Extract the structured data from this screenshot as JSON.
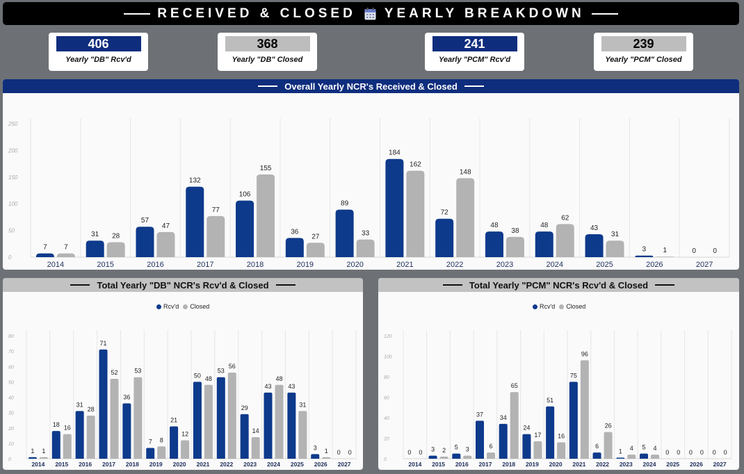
{
  "header": {
    "title": "RECEIVED & CLOSED",
    "title_tail": "YEARLY BREAKDOWN"
  },
  "kpis": [
    {
      "value": "406",
      "label": "Yearly \"DB\" Rcv'd"
    },
    {
      "value": "368",
      "label": "Yearly \"DB\" Closed"
    },
    {
      "value": "241",
      "label": "Yearly \"PCM\" Rcv'd"
    },
    {
      "value": "239",
      "label": "Yearly \"PCM\" Closed"
    }
  ],
  "panels": {
    "overall_title": "Overall Yearly NCR's Received & Closed",
    "db_title": "Total Yearly \"DB\" NCR's Rcv'd & Closed",
    "pcm_title": "Total Yearly \"PCM\" NCR's Rcv'd & Closed"
  },
  "legend": {
    "rcvd": "Rcv'd",
    "closed": "Closed"
  },
  "colors": {
    "rcvd": "#0e3a8c",
    "closed": "#b3b3b3",
    "navy": "#0e2d7d"
  },
  "chart_data": [
    {
      "id": "overall",
      "type": "bar",
      "title": "Overall Yearly NCR's Received & Closed",
      "categories": [
        "2014",
        "2015",
        "2016",
        "2017",
        "2018",
        "2019",
        "2020",
        "2021",
        "2022",
        "2023",
        "2024",
        "2025",
        "2026",
        "2027"
      ],
      "series": [
        {
          "name": "Rcv'd",
          "values": [
            7,
            31,
            57,
            132,
            106,
            36,
            89,
            184,
            72,
            48,
            48,
            43,
            3,
            0
          ]
        },
        {
          "name": "Closed",
          "values": [
            7,
            28,
            47,
            77,
            155,
            27,
            33,
            162,
            148,
            38,
            62,
            31,
            1,
            0
          ]
        }
      ],
      "ylim": [
        0,
        250
      ],
      "yticks": [
        0,
        50,
        100,
        150,
        200,
        250
      ]
    },
    {
      "id": "db",
      "type": "bar",
      "title": "Total Yearly \"DB\" NCR's Rcv'd & Closed",
      "categories": [
        "2014",
        "2015",
        "2016",
        "2017",
        "2018",
        "2019",
        "2020",
        "2021",
        "2022",
        "2023",
        "2024",
        "2025",
        "2026",
        "2027"
      ],
      "series": [
        {
          "name": "Rcv'd",
          "values": [
            1,
            18,
            31,
            71,
            36,
            7,
            21,
            50,
            53,
            29,
            43,
            43,
            3,
            0
          ]
        },
        {
          "name": "Closed",
          "values": [
            1,
            16,
            28,
            52,
            53,
            8,
            12,
            48,
            56,
            14,
            48,
            31,
            1,
            0
          ]
        }
      ],
      "ylim": [
        0,
        80
      ],
      "yticks": [
        0,
        10,
        20,
        30,
        40,
        50,
        60,
        70,
        80
      ]
    },
    {
      "id": "pcm",
      "type": "bar",
      "title": "Total Yearly \"PCM\" NCR's Rcv'd & Closed",
      "categories": [
        "2014",
        "2015",
        "2016",
        "2017",
        "2018",
        "2019",
        "2020",
        "2021",
        "2022",
        "2023",
        "2024",
        "2025",
        "2026",
        "2027"
      ],
      "series": [
        {
          "name": "Rcv'd",
          "values": [
            0,
            3,
            5,
            37,
            34,
            24,
            51,
            75,
            6,
            1,
            5,
            0,
            0,
            0
          ]
        },
        {
          "name": "Closed",
          "values": [
            0,
            2,
            3,
            6,
            65,
            17,
            16,
            96,
            26,
            4,
            4,
            0,
            0,
            0
          ]
        }
      ],
      "ylim": [
        0,
        120
      ],
      "yticks": [
        0,
        20,
        40,
        60,
        80,
        100,
        120
      ]
    }
  ]
}
